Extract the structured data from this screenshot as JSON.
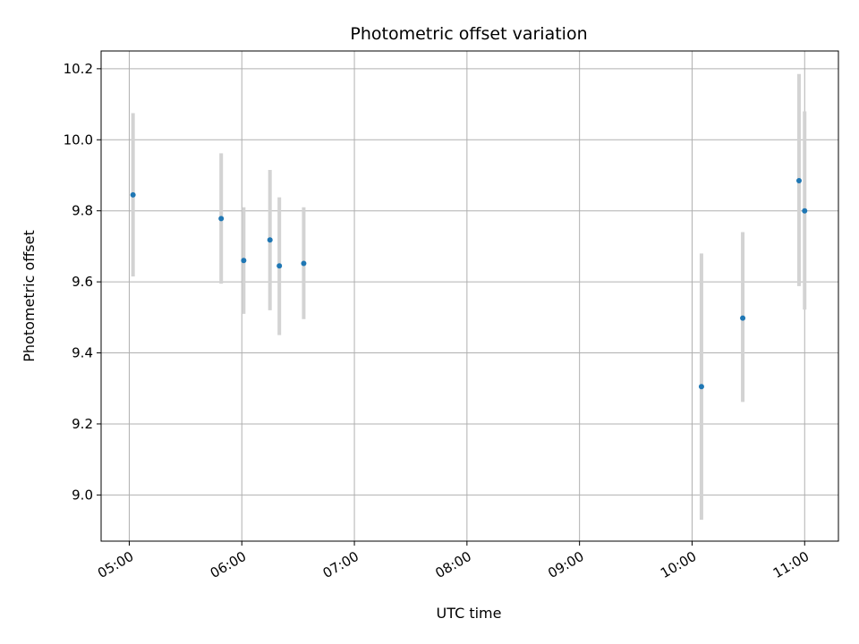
{
  "chart_data": {
    "type": "scatter",
    "title": "Photometric offset variation",
    "xlabel": "UTC time",
    "ylabel": "Photometric offset",
    "x_axis": "time",
    "xlim": [
      "04:45",
      "11:18"
    ],
    "ylim": [
      8.87,
      10.25
    ],
    "x_ticks": [
      "05:00",
      "06:00",
      "07:00",
      "08:00",
      "09:00",
      "10:00",
      "11:00"
    ],
    "y_ticks": [
      9.0,
      9.2,
      9.4,
      9.6,
      9.8,
      10.0,
      10.2
    ],
    "y_tick_labels": [
      "9.0",
      "9.2",
      "9.4",
      "9.6",
      "9.8",
      "10.0",
      "10.2"
    ],
    "grid": true,
    "marker_color": "#1f77b4",
    "errorbar_color": "#d3d3d3",
    "points": [
      {
        "time": "05:02",
        "value": 9.845,
        "err_low": 9.615,
        "err_high": 10.075
      },
      {
        "time": "05:49",
        "value": 9.778,
        "err_low": 9.595,
        "err_high": 9.962
      },
      {
        "time": "06:01",
        "value": 9.66,
        "err_low": 9.51,
        "err_high": 9.81
      },
      {
        "time": "06:15",
        "value": 9.718,
        "err_low": 9.52,
        "err_high": 9.915
      },
      {
        "time": "06:20",
        "value": 9.645,
        "err_low": 9.45,
        "err_high": 9.838
      },
      {
        "time": "06:33",
        "value": 9.652,
        "err_low": 9.495,
        "err_high": 9.81
      },
      {
        "time": "10:05",
        "value": 9.305,
        "err_low": 8.93,
        "err_high": 9.68
      },
      {
        "time": "10:27",
        "value": 9.498,
        "err_low": 9.262,
        "err_high": 9.74
      },
      {
        "time": "10:57",
        "value": 9.885,
        "err_low": 9.588,
        "err_high": 10.185
      },
      {
        "time": "11:00",
        "value": 9.8,
        "err_low": 9.522,
        "err_high": 10.08
      }
    ]
  }
}
